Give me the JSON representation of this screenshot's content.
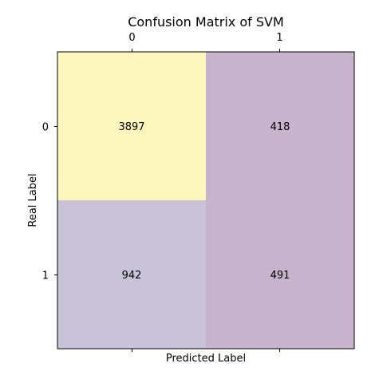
{
  "chart_data": {
    "type": "heatmap",
    "title": "Confusion Matrix of SVM",
    "xlabel": "Predicted Label",
    "ylabel": "Real Label",
    "x_categories": [
      "0",
      "1"
    ],
    "y_categories": [
      "0",
      "1"
    ],
    "x_tick_position": "top",
    "cells": [
      [
        3897,
        418
      ],
      [
        942,
        491
      ]
    ],
    "cell_colors": [
      [
        "#fdf6bd",
        "#c8b3cc"
      ],
      [
        "#c8c3d7",
        "#c8b3cc"
      ]
    ],
    "grid": false
  }
}
